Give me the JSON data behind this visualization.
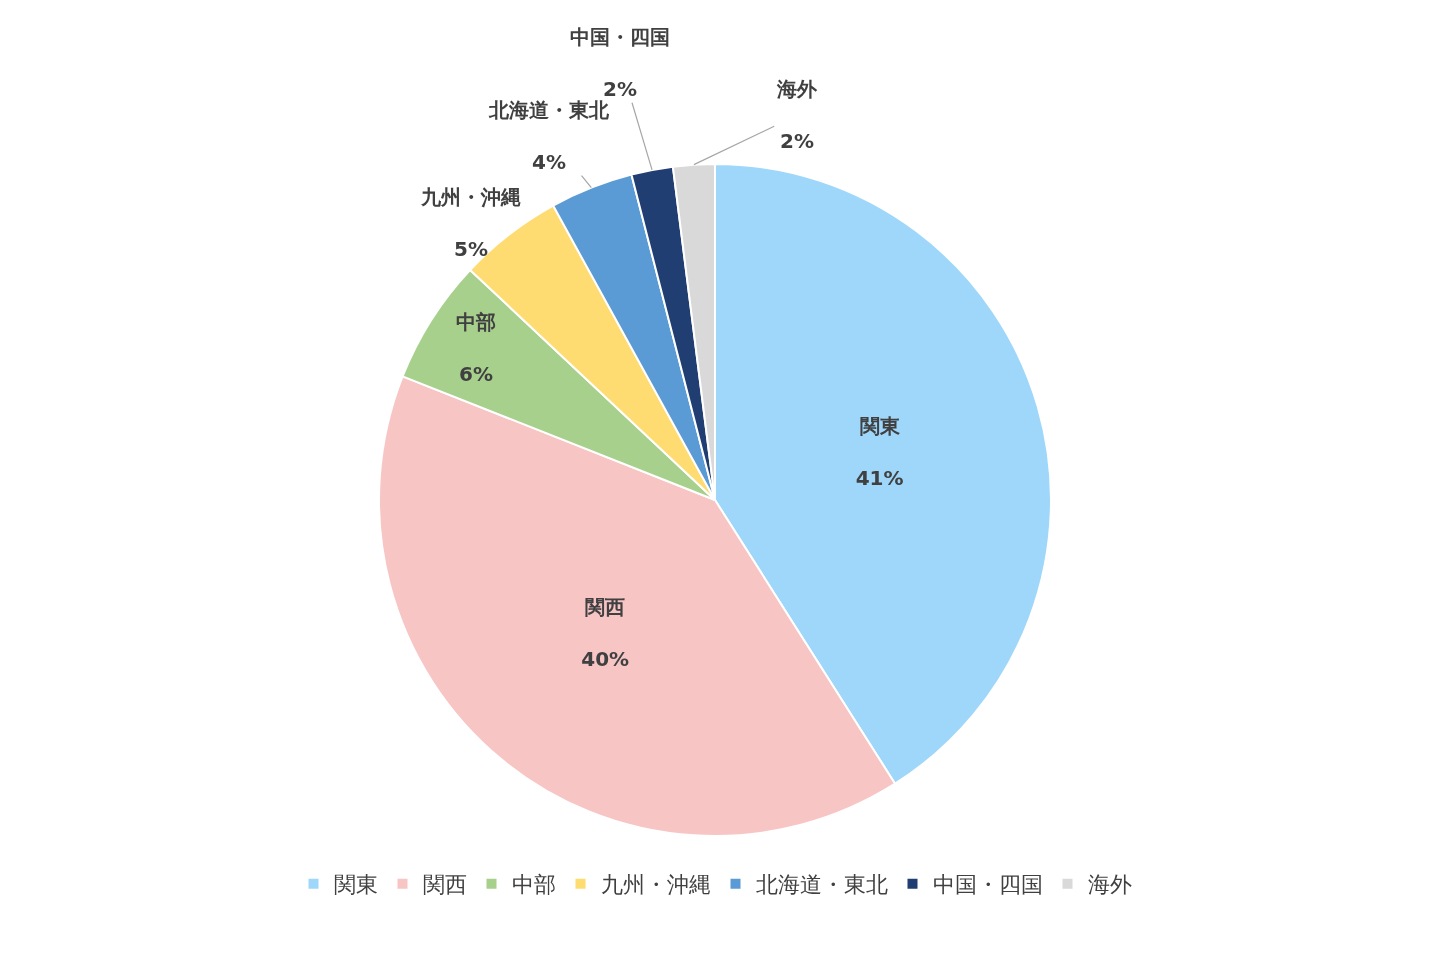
{
  "chart_data": {
    "type": "pie",
    "categories": [
      "関東",
      "関西",
      "中部",
      "九州・沖縄",
      "北海道・東北",
      "中国・四国",
      "海外"
    ],
    "values": [
      41,
      40,
      6,
      5,
      4,
      2,
      2
    ],
    "value_labels": [
      "41%",
      "40%",
      "6%",
      "5%",
      "4%",
      "2%",
      "2%"
    ],
    "colors": [
      "#9fd7fb",
      "#f8c5c5",
      "#a8d08d",
      "#ffdc72",
      "#5b9bd5",
      "#203e72",
      "#d9d9d9"
    ],
    "legend": "bottom"
  }
}
